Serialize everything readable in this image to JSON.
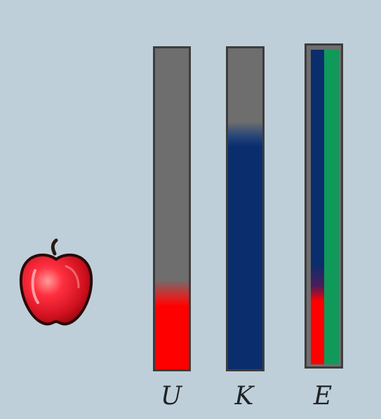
{
  "bars": [
    {
      "label": "U",
      "fill_fraction": 0.28,
      "color": "#ff0000"
    },
    {
      "label": "K",
      "fill_fraction": 0.77,
      "color": "#0a2d6e"
    },
    {
      "label": "E",
      "fill_fraction": 1.0,
      "components": [
        {
          "color": "#0a2d6e"
        },
        {
          "color": "#ff0000"
        },
        {
          "color": "#0f9a5a"
        }
      ]
    }
  ],
  "icons": {
    "apple": "apple-icon"
  },
  "colors": {
    "background": "#bfcfd9",
    "bar_empty": "#6e6e6e",
    "bar_border": "#3d3d3d"
  }
}
